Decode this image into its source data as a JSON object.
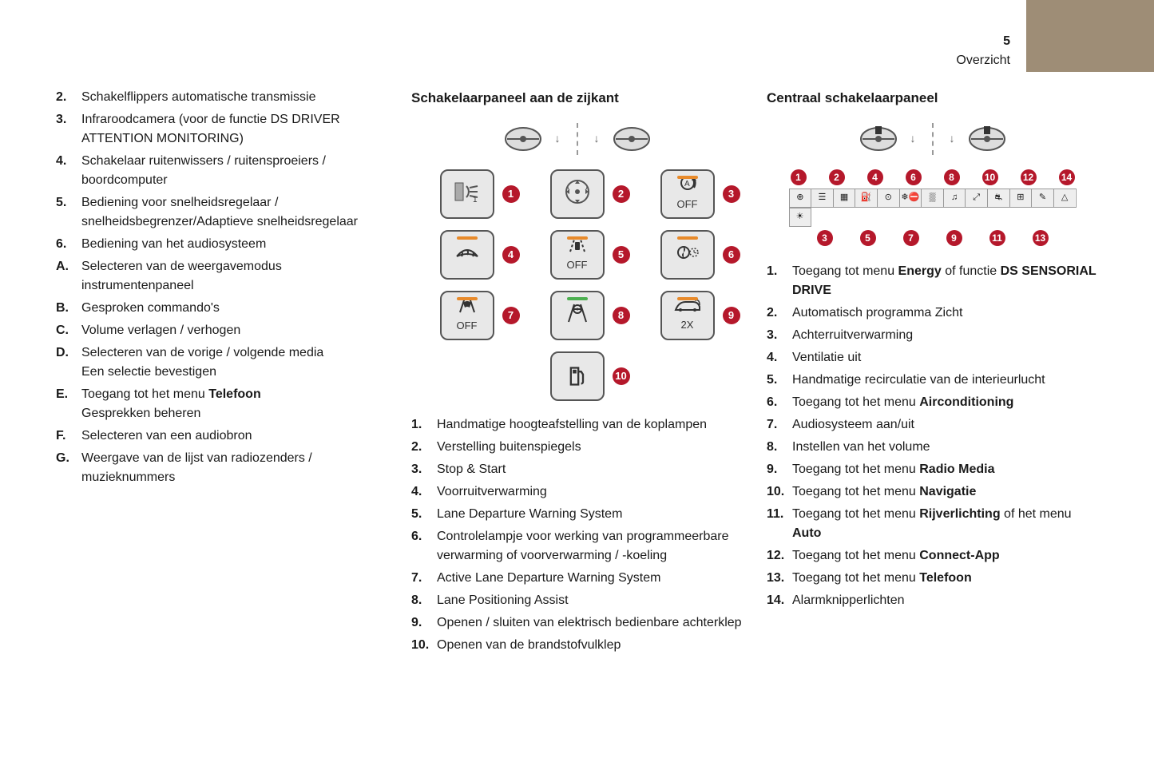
{
  "page": {
    "number": "5",
    "section": "Overzicht"
  },
  "colors": {
    "tab_bg": "#9e8d76",
    "badge_bg": "#b5182b",
    "led_orange": "#e88a2a",
    "led_green": "#4caf50",
    "btn_bg": "#e8e8e8",
    "btn_border": "#555555"
  },
  "col1": {
    "items": [
      {
        "m": "2.",
        "t": "Schakelflippers automatische transmissie"
      },
      {
        "m": "3.",
        "t": "Infraroodcamera (voor de functie DS DRIVER ATTENTION MONITORING)"
      },
      {
        "m": "4.",
        "t": "Schakelaar ruitenwissers / ruitensproeiers / boordcomputer"
      },
      {
        "m": "5.",
        "t": "Bediening voor snelheidsregelaar / snelheidsbegrenzer/Adaptieve snelheidsregelaar"
      },
      {
        "m": "6.",
        "t": "Bediening van het audiosysteem"
      },
      {
        "m": "A.",
        "t": "Selecteren van de weergavemodus instrumentenpaneel"
      },
      {
        "m": "B.",
        "t": "Gesproken commando's"
      },
      {
        "m": "C.",
        "t": "Volume verlagen / verhogen"
      },
      {
        "m": "D.",
        "t": "Selecteren van de vorige / volgende media\nEen selectie bevestigen"
      },
      {
        "m": "E.",
        "t_pre": "Toegang tot het menu ",
        "t_bold": "Telefoon",
        "t_post": "\nGesprekken beheren"
      },
      {
        "m": "F.",
        "t": "Selecteren van een audiobron"
      },
      {
        "m": "G.",
        "t": "Weergave van de lijst van radiozenders / muzieknummers"
      }
    ]
  },
  "col2": {
    "title": "Schakelaarpaneel aan de zijkant",
    "buttons": [
      {
        "n": "1",
        "led": "",
        "icon": "headlight-adjust"
      },
      {
        "n": "2",
        "led": "",
        "icon": "mirror-dial"
      },
      {
        "n": "3",
        "led": "orange",
        "icon": "stop-start",
        "label": "OFF"
      },
      {
        "n": "4",
        "led": "orange",
        "icon": "windscreen-heat"
      },
      {
        "n": "5",
        "led": "orange",
        "icon": "lane-depart-off",
        "label": "OFF"
      },
      {
        "n": "6",
        "led": "orange",
        "icon": "preheat-fan"
      },
      {
        "n": "7",
        "led": "orange",
        "icon": "active-lane",
        "label": "OFF"
      },
      {
        "n": "8",
        "led": "green",
        "icon": "lane-position"
      },
      {
        "n": "9",
        "led": "orange",
        "icon": "tailgate",
        "label": "2X"
      }
    ],
    "fuel": {
      "n": "10",
      "icon": "fuel"
    },
    "items": [
      {
        "m": "1.",
        "t": "Handmatige hoogteafstelling van de koplampen"
      },
      {
        "m": "2.",
        "t": "Verstelling buitenspiegels"
      },
      {
        "m": "3.",
        "t": "Stop & Start"
      },
      {
        "m": "4.",
        "t": "Voorruitverwarming"
      },
      {
        "m": "5.",
        "t": "Lane Departure Warning System"
      },
      {
        "m": "6.",
        "t": "Controlelampje voor werking van programmeerbare verwarming of voorverwarming / -koeling"
      },
      {
        "m": "7.",
        "t": "Active Lane Departure Warning System"
      },
      {
        "m": "8.",
        "t": "Lane Positioning Assist"
      },
      {
        "m": "9.",
        "t": "Openen / sluiten van elektrisch bedienbare achterklep"
      },
      {
        "m": "10.",
        "t": "Openen van de brandstofvulklep"
      }
    ]
  },
  "col3": {
    "title": "Centraal schakelaarpaneel",
    "top_badges": [
      "1",
      "2",
      "4",
      "6",
      "8",
      "10",
      "12",
      "14"
    ],
    "bot_badges": [
      "3",
      "5",
      "7",
      "9",
      "11",
      "13"
    ],
    "strip_icons_top": [
      "⊕",
      "☰",
      "▦",
      "⛽",
      "⊙",
      "❄︎⛔",
      "▒",
      "♫",
      "⤢",
      "⛐",
      "⊞",
      "✎",
      "△"
    ],
    "strip_icons_bot": [
      "☀"
    ],
    "items": [
      {
        "m": "1.",
        "t_pre": "Toegang tot menu ",
        "t_bold": "Energy",
        "t_post": " of functie ",
        "t_bold2": "DS SENSORIAL DRIVE"
      },
      {
        "m": "2.",
        "t": "Automatisch programma Zicht"
      },
      {
        "m": "3.",
        "t": "Achterruitverwarming"
      },
      {
        "m": "4.",
        "t": "Ventilatie uit"
      },
      {
        "m": "5.",
        "t": "Handmatige recirculatie van de interieurlucht"
      },
      {
        "m": "6.",
        "t_pre": "Toegang tot het menu ",
        "t_bold": "Airconditioning"
      },
      {
        "m": "7.",
        "t": "Audiosysteem aan/uit"
      },
      {
        "m": "8.",
        "t": "Instellen van het volume"
      },
      {
        "m": "9.",
        "t_pre": "Toegang tot het menu ",
        "t_bold": "Radio Media"
      },
      {
        "m": "10.",
        "t_pre": "Toegang tot het menu ",
        "t_bold": "Navigatie"
      },
      {
        "m": "11.",
        "t_pre": "Toegang tot het menu ",
        "t_bold": "Rijverlichting",
        "t_post": " of het menu ",
        "t_bold2": "Auto"
      },
      {
        "m": "12.",
        "t_pre": "Toegang tot het menu ",
        "t_bold": "Connect-App"
      },
      {
        "m": "13.",
        "t_pre": "Toegang tot het menu ",
        "t_bold": "Telefoon"
      },
      {
        "m": "14.",
        "t": "Alarmknipperlichten"
      }
    ]
  }
}
